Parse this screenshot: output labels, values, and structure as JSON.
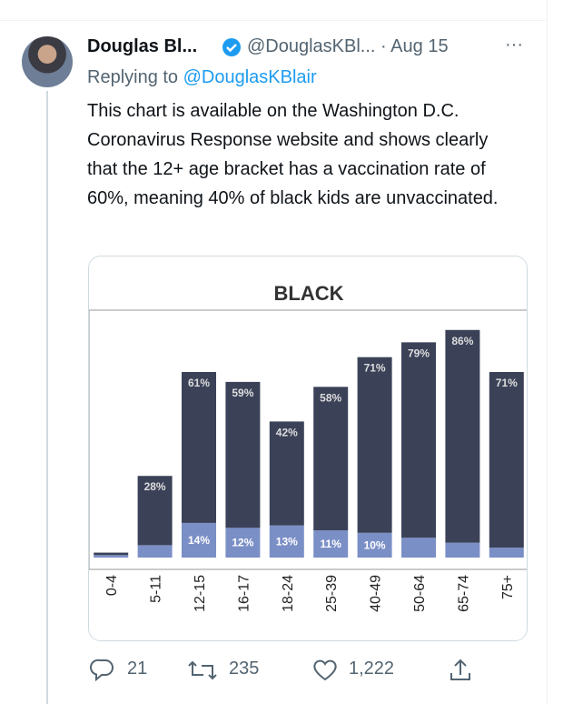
{
  "tweet": {
    "name": "Douglas Bl...",
    "handle": "@DouglasKBl...",
    "separator": "·",
    "date": "Aug 15",
    "more": "···",
    "replying_label": "Replying to",
    "replying_to": "@DouglasKBlair",
    "text": "This chart is available on the Washington D.C. Coronavirus Response website and shows clearly that the 12+ age bracket has a vaccination rate of 60%, meaning 40% of black kids are unvaccinated.",
    "replies": "21",
    "retweets": "235",
    "likes": "1,222"
  },
  "chart_data": {
    "type": "bar",
    "stacked": true,
    "title": "BLACK",
    "categories": [
      "0-4",
      "5-11",
      "12-15",
      "16-17",
      "18-24",
      "25-39",
      "40-49",
      "50-64",
      "65-74",
      "75+"
    ],
    "series": [
      {
        "color": "#7b8fc7",
        "values": [
          1,
          5,
          14,
          12,
          13,
          11,
          10,
          8,
          6,
          4
        ],
        "value_labels": [
          null,
          null,
          "14%",
          "12%",
          "13%",
          "11%",
          "10%",
          null,
          null,
          null
        ]
      },
      {
        "color": "#3b4258",
        "values": [
          1,
          28,
          61,
          59,
          42,
          58,
          71,
          79,
          86,
          71
        ],
        "value_labels": [
          null,
          "28%",
          "61%",
          "59%",
          "42%",
          "58%",
          "71%",
          "79%",
          "86%",
          "71%"
        ]
      }
    ],
    "ylim": [
      0,
      100
    ]
  }
}
